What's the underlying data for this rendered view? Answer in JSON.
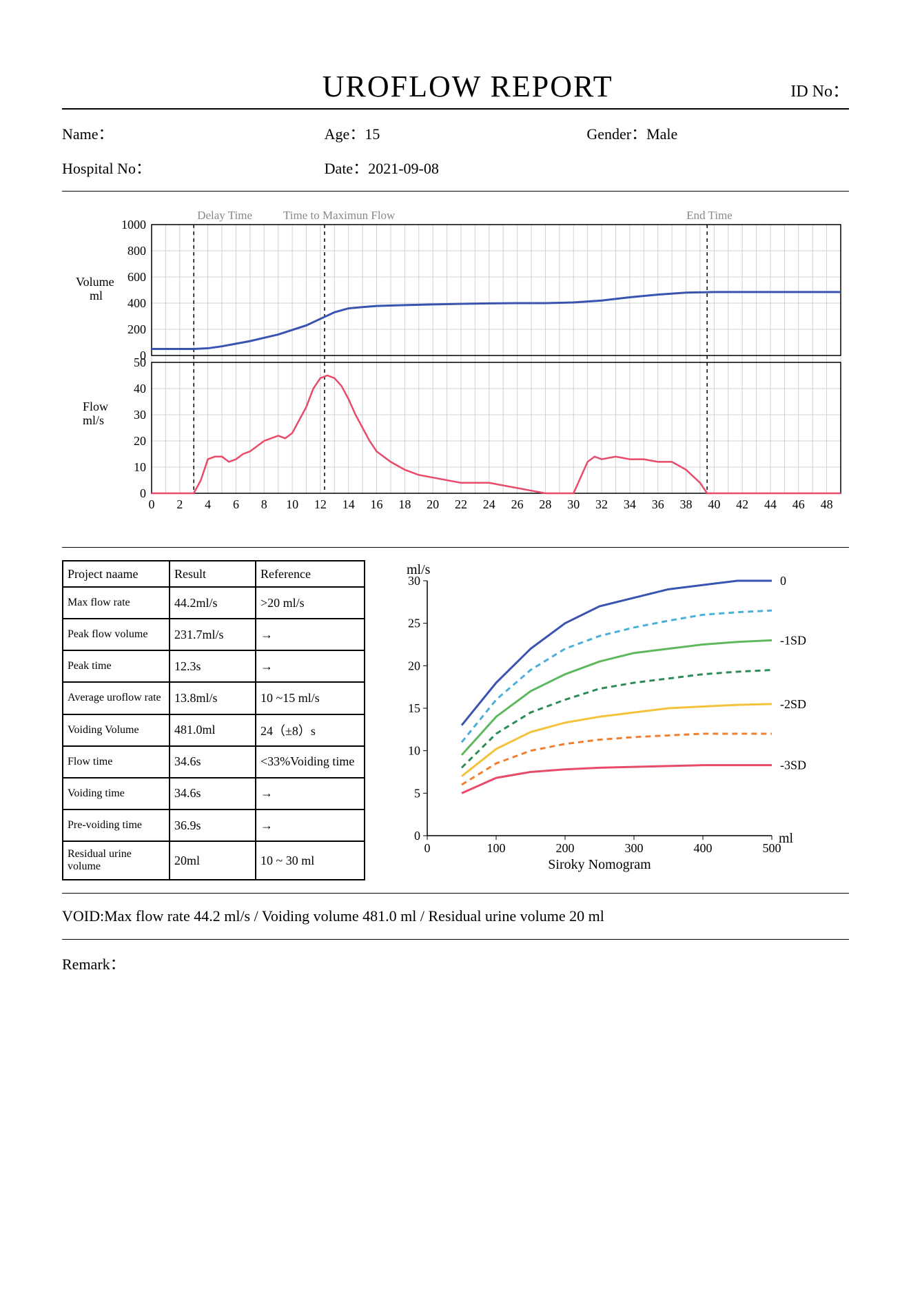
{
  "header": {
    "title": "UROFLOW REPORT",
    "id_no_label": "ID No："
  },
  "patient": {
    "name_label": "Name：",
    "name_value": "",
    "age_label": "Age：",
    "age_value": "15",
    "gender_label": "Gender：",
    "gender_value": "Male",
    "hospital_label": "Hospital No：",
    "hospital_value": "",
    "date_label": "Date：",
    "date_value": "2021-09-08"
  },
  "flow_chart": {
    "type": "line",
    "x_axis": {
      "min": 0,
      "max": 49,
      "tick_step": 2,
      "unit": "s"
    },
    "volume": {
      "label": "Volume\nml",
      "ymin": 0,
      "ymax": 1000,
      "tick_step": 200,
      "color": "#3853b0",
      "line_width": 3,
      "points": [
        [
          0,
          50
        ],
        [
          3,
          50
        ],
        [
          4,
          55
        ],
        [
          5,
          70
        ],
        [
          6,
          90
        ],
        [
          7,
          110
        ],
        [
          8,
          135
        ],
        [
          9,
          160
        ],
        [
          10,
          195
        ],
        [
          11,
          230
        ],
        [
          12,
          280
        ],
        [
          13,
          330
        ],
        [
          14,
          360
        ],
        [
          15,
          370
        ],
        [
          16,
          378
        ],
        [
          18,
          385
        ],
        [
          20,
          390
        ],
        [
          22,
          395
        ],
        [
          24,
          398
        ],
        [
          26,
          400
        ],
        [
          28,
          400
        ],
        [
          30,
          405
        ],
        [
          32,
          420
        ],
        [
          34,
          445
        ],
        [
          36,
          465
        ],
        [
          38,
          480
        ],
        [
          40,
          485
        ],
        [
          44,
          485
        ],
        [
          49,
          485
        ]
      ]
    },
    "flow": {
      "label": "Flow\nml/s",
      "ymin": 0,
      "ymax": 50,
      "tick_step": 10,
      "color": "#e84a6a",
      "line_width": 2.5,
      "points": [
        [
          0,
          0
        ],
        [
          3,
          0
        ],
        [
          3.5,
          5
        ],
        [
          4,
          13
        ],
        [
          4.5,
          14
        ],
        [
          5,
          14
        ],
        [
          5.5,
          12
        ],
        [
          6,
          13
        ],
        [
          6.5,
          15
        ],
        [
          7,
          16
        ],
        [
          7.5,
          18
        ],
        [
          8,
          20
        ],
        [
          8.5,
          21
        ],
        [
          9,
          22
        ],
        [
          9.5,
          21
        ],
        [
          10,
          23
        ],
        [
          10.5,
          28
        ],
        [
          11,
          33
        ],
        [
          11.5,
          40
        ],
        [
          12,
          44
        ],
        [
          12.5,
          45
        ],
        [
          13,
          44
        ],
        [
          13.5,
          41
        ],
        [
          14,
          36
        ],
        [
          14.5,
          30
        ],
        [
          15,
          25
        ],
        [
          15.5,
          20
        ],
        [
          16,
          16
        ],
        [
          17,
          12
        ],
        [
          18,
          9
        ],
        [
          19,
          7
        ],
        [
          20,
          6
        ],
        [
          21,
          5
        ],
        [
          22,
          4
        ],
        [
          23,
          4
        ],
        [
          24,
          4
        ],
        [
          25,
          3
        ],
        [
          26,
          2
        ],
        [
          27,
          1
        ],
        [
          28,
          0
        ],
        [
          30,
          0
        ],
        [
          30.5,
          6
        ],
        [
          31,
          12
        ],
        [
          31.5,
          14
        ],
        [
          32,
          13
        ],
        [
          33,
          14
        ],
        [
          34,
          13
        ],
        [
          35,
          13
        ],
        [
          36,
          12
        ],
        [
          37,
          12
        ],
        [
          38,
          9
        ],
        [
          39,
          4
        ],
        [
          39.5,
          0
        ],
        [
          49,
          0
        ]
      ]
    },
    "markers": {
      "delay_time": {
        "label": "Delay Time",
        "x": 3,
        "dash": "5,5",
        "color": "#000"
      },
      "time_to_max": {
        "label": "Time to Maximun Flow",
        "x": 12.3,
        "dash": "5,5",
        "color": "#000"
      },
      "end_time": {
        "label": "End Time",
        "x": 39.5,
        "dash": "5,5",
        "color": "#000"
      }
    },
    "grid_color": "#d0d0d0",
    "background_color": "#ffffff"
  },
  "results_table": {
    "headers": [
      "Project naame",
      "Result",
      "Reference"
    ],
    "rows": [
      [
        "Max flow rate",
        "44.2ml/s",
        ">20 ml/s"
      ],
      [
        "Peak flow volume",
        "231.7ml/s",
        "→"
      ],
      [
        "Peak time",
        "12.3s",
        "→"
      ],
      [
        "Average uroflow rate",
        "13.8ml/s",
        "10 ~15 ml/s"
      ],
      [
        "Voiding Volume",
        "481.0ml",
        "24（±8）s"
      ],
      [
        "Flow time",
        "34.6s",
        "<33%Voiding time"
      ],
      [
        "Voiding time",
        "34.6s",
        "→"
      ],
      [
        "Pre-voiding time",
        "36.9s",
        "→"
      ],
      [
        "Residual urine volume",
        "20ml",
        "10 ~ 30 ml"
      ]
    ]
  },
  "nomogram": {
    "title": "Siroky Nomogram",
    "y_unit": "ml/s",
    "x_unit": "ml",
    "xlim": [
      0,
      500
    ],
    "xtick_step": 100,
    "ylim": [
      0,
      30
    ],
    "ytick_step": 5,
    "curves": [
      {
        "label": "0",
        "color": "#3853b0",
        "dash": "",
        "points": [
          [
            50,
            13
          ],
          [
            100,
            18
          ],
          [
            150,
            22
          ],
          [
            200,
            25
          ],
          [
            250,
            27
          ],
          [
            300,
            28
          ],
          [
            350,
            29
          ],
          [
            400,
            29.5
          ],
          [
            450,
            30
          ],
          [
            500,
            30
          ]
        ]
      },
      {
        "label": "",
        "color": "#4ab0d8",
        "dash": "8,6",
        "points": [
          [
            50,
            11
          ],
          [
            100,
            16
          ],
          [
            150,
            19.5
          ],
          [
            200,
            22
          ],
          [
            250,
            23.5
          ],
          [
            300,
            24.5
          ],
          [
            350,
            25.3
          ],
          [
            400,
            26
          ],
          [
            450,
            26.3
          ],
          [
            500,
            26.5
          ]
        ]
      },
      {
        "label": "-1SD",
        "color": "#5eb85e",
        "dash": "",
        "points": [
          [
            50,
            9.5
          ],
          [
            100,
            14
          ],
          [
            150,
            17
          ],
          [
            200,
            19
          ],
          [
            250,
            20.5
          ],
          [
            300,
            21.5
          ],
          [
            350,
            22
          ],
          [
            400,
            22.5
          ],
          [
            450,
            22.8
          ],
          [
            500,
            23
          ]
        ]
      },
      {
        "label": "",
        "color": "#2e8b57",
        "dash": "8,6",
        "points": [
          [
            50,
            8
          ],
          [
            100,
            12
          ],
          [
            150,
            14.5
          ],
          [
            200,
            16
          ],
          [
            250,
            17.3
          ],
          [
            300,
            18
          ],
          [
            350,
            18.5
          ],
          [
            400,
            19
          ],
          [
            450,
            19.3
          ],
          [
            500,
            19.5
          ]
        ]
      },
      {
        "label": "-2SD",
        "color": "#f3c23a",
        "dash": "",
        "points": [
          [
            50,
            7
          ],
          [
            100,
            10.2
          ],
          [
            150,
            12.2
          ],
          [
            200,
            13.3
          ],
          [
            250,
            14
          ],
          [
            300,
            14.5
          ],
          [
            350,
            15
          ],
          [
            400,
            15.2
          ],
          [
            450,
            15.4
          ],
          [
            500,
            15.5
          ]
        ]
      },
      {
        "label": "",
        "color": "#f08030",
        "dash": "8,6",
        "points": [
          [
            50,
            6
          ],
          [
            100,
            8.5
          ],
          [
            150,
            10
          ],
          [
            200,
            10.8
          ],
          [
            250,
            11.3
          ],
          [
            300,
            11.6
          ],
          [
            350,
            11.8
          ],
          [
            400,
            12
          ],
          [
            450,
            12
          ],
          [
            500,
            12
          ]
        ]
      },
      {
        "label": "-3SD",
        "color": "#e84a6a",
        "dash": "",
        "points": [
          [
            50,
            5
          ],
          [
            100,
            6.8
          ],
          [
            150,
            7.5
          ],
          [
            200,
            7.8
          ],
          [
            250,
            8
          ],
          [
            300,
            8.1
          ],
          [
            350,
            8.2
          ],
          [
            400,
            8.3
          ],
          [
            450,
            8.3
          ],
          [
            500,
            8.3
          ]
        ]
      }
    ],
    "axis_fontsize": 18,
    "line_width": 3,
    "background_color": "#ffffff"
  },
  "void_line": "VOID:Max flow rate 44.2 ml/s / Voiding volume 481.0 ml / Residual urine volume 20 ml",
  "remark_label": "Remark："
}
